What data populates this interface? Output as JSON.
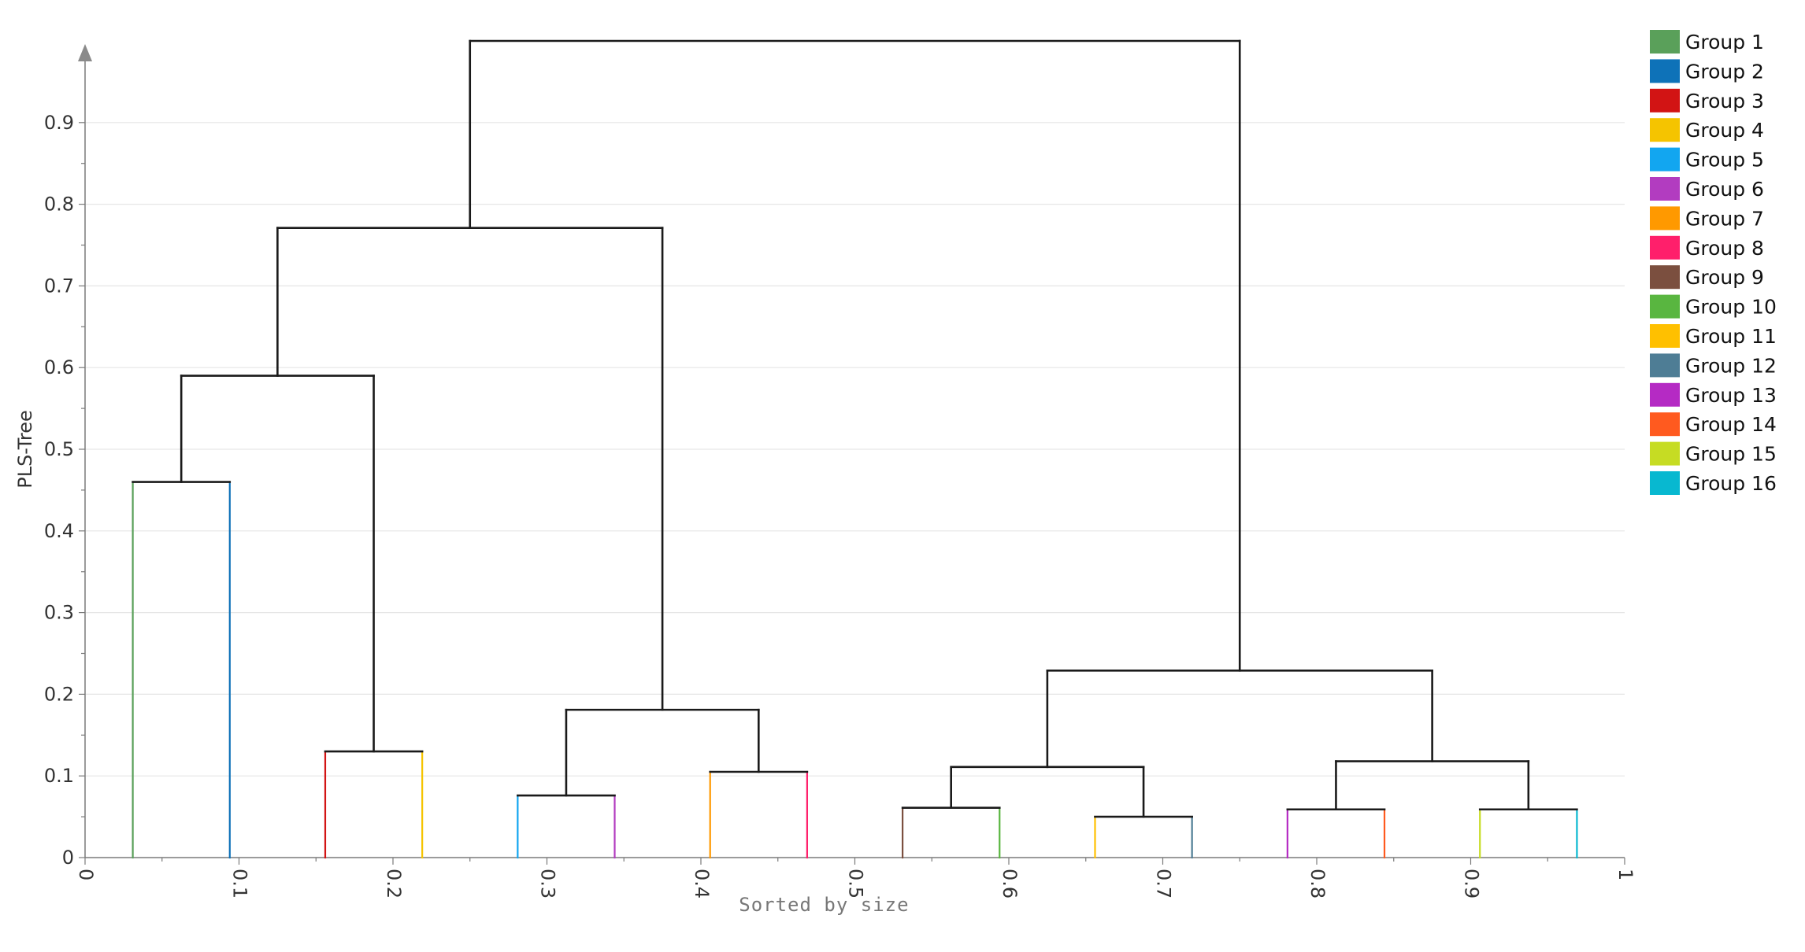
{
  "chart_data": {
    "type": "dendrogram",
    "title": "",
    "xlabel": "Sorted by size",
    "ylabel": "PLS-Tree",
    "xlim": [
      0,
      1
    ],
    "ylim": [
      0,
      1
    ],
    "x_ticks": [
      "0",
      "0.1",
      "0.2",
      "0.3",
      "0.4",
      "0.5",
      "0.6",
      "0.7",
      "0.8",
      "0.9",
      "1"
    ],
    "y_ticks": [
      "0",
      "0.1",
      "0.2",
      "0.3",
      "0.4",
      "0.5",
      "0.6",
      "0.7",
      "0.8",
      "0.9"
    ],
    "grid": true,
    "legend_position": "top-right",
    "leaves": [
      {
        "name": "Group 1",
        "x": 0.031,
        "color": "#5aa05a"
      },
      {
        "name": "Group 2",
        "x": 0.094,
        "color": "#0e72b8"
      },
      {
        "name": "Group 3",
        "x": 0.156,
        "color": "#d21414"
      },
      {
        "name": "Group 4",
        "x": 0.219,
        "color": "#f5c400"
      },
      {
        "name": "Group 5",
        "x": 0.281,
        "color": "#12a6f0"
      },
      {
        "name": "Group 6",
        "x": 0.344,
        "color": "#b23cc0"
      },
      {
        "name": "Group 7",
        "x": 0.406,
        "color": "#ff9900"
      },
      {
        "name": "Group 8",
        "x": 0.469,
        "color": "#ff1f6b"
      },
      {
        "name": "Group 9",
        "x": 0.531,
        "color": "#7b4f3f"
      },
      {
        "name": "Group 10",
        "x": 0.594,
        "color": "#59b640"
      },
      {
        "name": "Group 11",
        "x": 0.656,
        "color": "#ffc000"
      },
      {
        "name": "Group 12",
        "x": 0.719,
        "color": "#4e7d95"
      },
      {
        "name": "Group 13",
        "x": 0.781,
        "color": "#b52ac4"
      },
      {
        "name": "Group 14",
        "x": 0.844,
        "color": "#ff5a1f"
      },
      {
        "name": "Group 15",
        "x": 0.906,
        "color": "#c6dc23"
      },
      {
        "name": "Group 16",
        "x": 0.969,
        "color": "#08b8d0"
      }
    ],
    "merges": [
      {
        "id": "m1",
        "left": 0,
        "right": 1,
        "height": 0.46
      },
      {
        "id": "m2",
        "left": 2,
        "right": 3,
        "height": 0.13
      },
      {
        "id": "m3",
        "left": 4,
        "right": 5,
        "height": 0.076
      },
      {
        "id": "m4",
        "left": 6,
        "right": 7,
        "height": 0.105
      },
      {
        "id": "m5",
        "left": 8,
        "right": 9,
        "height": 0.061
      },
      {
        "id": "m6",
        "left": 10,
        "right": 11,
        "height": 0.05
      },
      {
        "id": "m7",
        "left": 12,
        "right": 13,
        "height": 0.059
      },
      {
        "id": "m8",
        "left": 14,
        "right": 15,
        "height": 0.059
      },
      {
        "id": "m9",
        "left": "m1",
        "right": "m2",
        "height": 0.59
      },
      {
        "id": "m10",
        "left": "m3",
        "right": "m4",
        "height": 0.181
      },
      {
        "id": "m11",
        "left": "m5",
        "right": "m6",
        "height": 0.111
      },
      {
        "id": "m12",
        "left": "m7",
        "right": "m8",
        "height": 0.118
      },
      {
        "id": "m13",
        "left": "m9",
        "right": "m10",
        "height": 0.771
      },
      {
        "id": "m14",
        "left": "m11",
        "right": "m12",
        "height": 0.229
      },
      {
        "id": "m15",
        "left": "m13",
        "right": "m14",
        "height": 1.0
      }
    ]
  }
}
